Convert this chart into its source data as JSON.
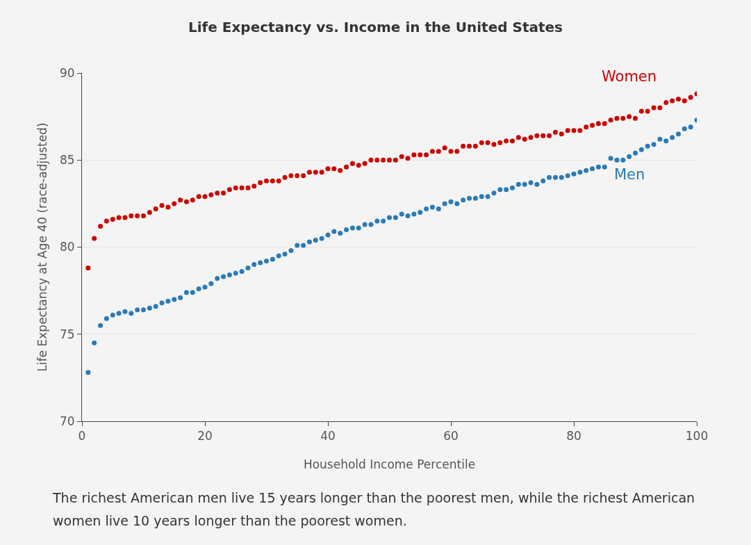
{
  "chart_data": {
    "type": "scatter",
    "title": "Life Expectancy vs. Income in the United States",
    "xlabel": "Household Income Percentile",
    "ylabel": "Life Expectancy at Age 40 (race-adjusted)",
    "annotations": [
      "The richest American men live 15 years longer than the poorest men, while the richest American women live 10 years longer than the poorest women."
    ],
    "x": [
      1,
      2,
      3,
      4,
      5,
      6,
      7,
      8,
      9,
      10,
      11,
      12,
      13,
      14,
      15,
      16,
      17,
      18,
      19,
      20,
      21,
      22,
      23,
      24,
      25,
      26,
      27,
      28,
      29,
      30,
      31,
      32,
      33,
      34,
      35,
      36,
      37,
      38,
      39,
      40,
      41,
      42,
      43,
      44,
      45,
      46,
      47,
      48,
      49,
      50,
      51,
      52,
      53,
      54,
      55,
      56,
      57,
      58,
      59,
      60,
      61,
      62,
      63,
      64,
      65,
      66,
      67,
      68,
      69,
      70,
      71,
      72,
      73,
      74,
      75,
      76,
      77,
      78,
      79,
      80,
      81,
      82,
      83,
      84,
      85,
      86,
      87,
      88,
      89,
      90,
      91,
      92,
      93,
      94,
      95,
      96,
      97,
      98,
      99,
      100
    ],
    "series": [
      {
        "name": "Women",
        "color": "#cc0000",
        "values": [
          78.8,
          80.5,
          81.2,
          81.5,
          81.6,
          81.7,
          81.7,
          81.8,
          81.8,
          81.8,
          82.0,
          82.2,
          82.4,
          82.3,
          82.5,
          82.7,
          82.6,
          82.7,
          82.9,
          82.9,
          83.0,
          83.1,
          83.1,
          83.3,
          83.4,
          83.4,
          83.4,
          83.5,
          83.7,
          83.8,
          83.8,
          83.8,
          84.0,
          84.1,
          84.1,
          84.1,
          84.3,
          84.3,
          84.3,
          84.5,
          84.5,
          84.4,
          84.6,
          84.8,
          84.7,
          84.8,
          85.0,
          85.0,
          85.0,
          85.0,
          85.0,
          85.2,
          85.1,
          85.3,
          85.3,
          85.3,
          85.5,
          85.5,
          85.7,
          85.5,
          85.5,
          85.8,
          85.8,
          85.8,
          86.0,
          86.0,
          85.9,
          86.0,
          86.1,
          86.1,
          86.3,
          86.2,
          86.3,
          86.4,
          86.4,
          86.4,
          86.6,
          86.5,
          86.7,
          86.7,
          86.7,
          86.9,
          87.0,
          87.1,
          87.1,
          87.3,
          87.4,
          87.4,
          87.5,
          87.4,
          87.8,
          87.8,
          88.0,
          88.0,
          88.3,
          88.4,
          88.5,
          88.4,
          88.6,
          88.8
        ]
      },
      {
        "name": "Men",
        "color": "#2a7ab9",
        "values": [
          72.8,
          74.5,
          75.5,
          75.9,
          76.1,
          76.2,
          76.3,
          76.2,
          76.4,
          76.4,
          76.5,
          76.6,
          76.8,
          76.9,
          77.0,
          77.1,
          77.4,
          77.4,
          77.6,
          77.7,
          77.9,
          78.2,
          78.3,
          78.4,
          78.5,
          78.6,
          78.8,
          79.0,
          79.1,
          79.2,
          79.3,
          79.5,
          79.6,
          79.8,
          80.1,
          80.1,
          80.3,
          80.4,
          80.5,
          80.7,
          80.9,
          80.8,
          81.0,
          81.1,
          81.1,
          81.3,
          81.3,
          81.5,
          81.5,
          81.7,
          81.7,
          81.9,
          81.8,
          81.9,
          82.0,
          82.2,
          82.3,
          82.2,
          82.5,
          82.6,
          82.5,
          82.7,
          82.8,
          82.8,
          82.9,
          82.9,
          83.1,
          83.3,
          83.3,
          83.4,
          83.6,
          83.6,
          83.7,
          83.6,
          83.8,
          84.0,
          84.0,
          84.0,
          84.1,
          84.2,
          84.3,
          84.4,
          84.5,
          84.6,
          84.6,
          85.1,
          85.0,
          85.0,
          85.2,
          85.4,
          85.6,
          85.8,
          85.9,
          86.2,
          86.1,
          86.3,
          86.5,
          86.8,
          86.9,
          87.3
        ]
      }
    ],
    "xlim": [
      0,
      100
    ],
    "xticks": [
      0,
      20,
      40,
      60,
      80,
      100
    ],
    "ylim": [
      70,
      90
    ],
    "yticks": [
      70,
      75,
      80,
      85,
      90
    ],
    "grid": "y",
    "legend": false,
    "marker": "circle"
  }
}
